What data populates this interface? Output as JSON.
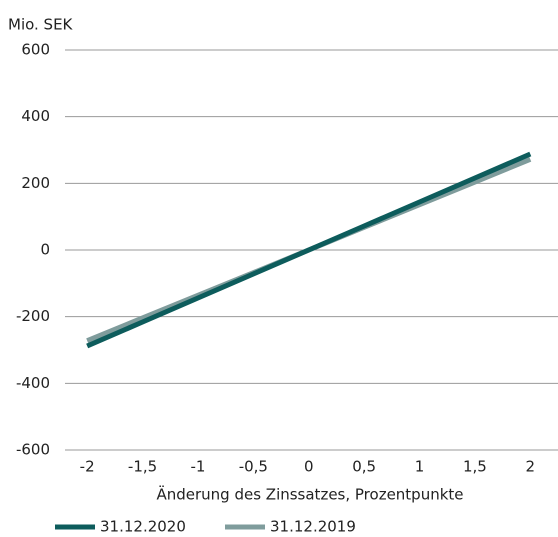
{
  "chart_data": {
    "type": "line",
    "y_label": "Mio. SEK",
    "x_label": "Änderung des Zinssatzes, Prozentpunkte",
    "x": [
      -2,
      -1.5,
      -1,
      -0.5,
      0,
      0.5,
      1,
      1.5,
      2
    ],
    "series": [
      {
        "name": "31.12.2020",
        "color": "#0d5c5c",
        "values": [
          -288,
          -216,
          -144,
          -72,
          0,
          72,
          144,
          216,
          288
        ]
      },
      {
        "name": "31.12.2019",
        "color": "#7f9c9c",
        "values": [
          -272,
          -204,
          -136,
          -68,
          0,
          68,
          136,
          204,
          272
        ]
      }
    ],
    "xlim": [
      -2.2,
      2.25
    ],
    "xticks": [
      -2,
      {
        "value": -1.5,
        "label": "-1,5"
      },
      -1,
      {
        "value": -0.5,
        "label": "-0,5"
      },
      0,
      {
        "value": 0.5,
        "label": "0,5"
      },
      1,
      {
        "value": 1.5,
        "label": "1,5"
      },
      2
    ],
    "ylim": [
      -600,
      600
    ],
    "yticks": [
      600,
      400,
      200,
      0,
      -200,
      -400,
      -600
    ],
    "grid": true,
    "legend": "bottom"
  }
}
